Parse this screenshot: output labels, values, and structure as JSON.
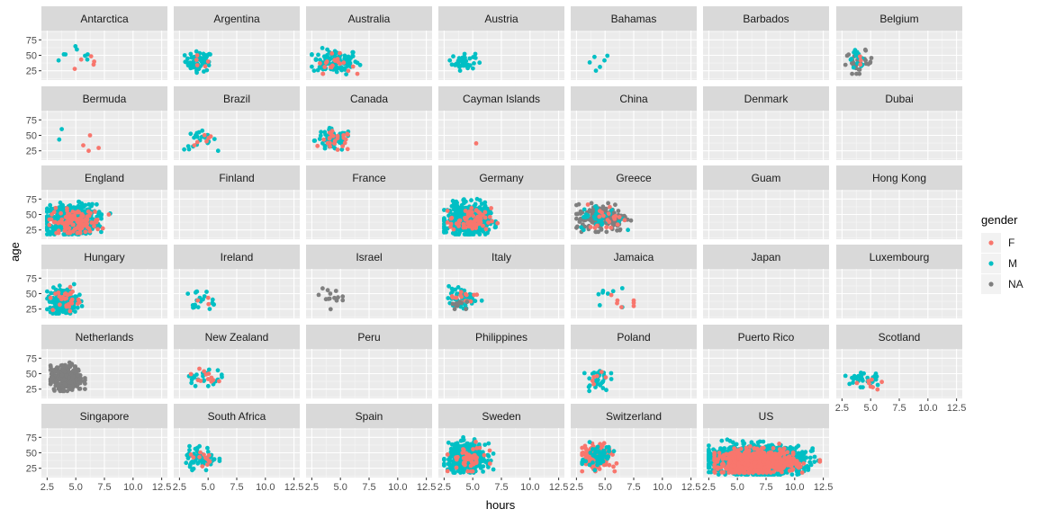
{
  "chart_data": {
    "type": "scatter",
    "title": "",
    "xlabel": "hours",
    "ylabel": "age",
    "xlim": [
      2,
      13
    ],
    "ylim": [
      10,
      90
    ],
    "x_ticks": [
      2.5,
      5.0,
      7.5,
      10.0,
      12.5
    ],
    "x_tick_labels": [
      "2.5",
      "5.0",
      "7.5",
      "10.0",
      "12.5"
    ],
    "y_ticks": [
      25,
      50,
      75
    ],
    "y_tick_labels": [
      "25",
      "50",
      "75"
    ],
    "grid": true,
    "facet_cols": 7,
    "legend": {
      "title": "gender",
      "position": "right",
      "entries": [
        {
          "label": "F",
          "color": "#F8766D"
        },
        {
          "label": "M",
          "color": "#00BFC4"
        },
        {
          "label": "NA",
          "color": "#7F7F7F"
        }
      ]
    },
    "panels": [
      {
        "name": "Antarctica",
        "clusters": [
          {
            "g": "M",
            "n": 8,
            "cx": 5.5,
            "cy": 48,
            "sx": 1.3,
            "sy": 12,
            "xr": [
              3.5,
              7.5
            ],
            "yr": [
              20,
              70
            ]
          },
          {
            "g": "F",
            "n": 5,
            "cx": 5.7,
            "cy": 42,
            "sx": 1.0,
            "sy": 10,
            "xr": [
              4,
              7.5
            ],
            "yr": [
              28,
              65
            ]
          }
        ]
      },
      {
        "name": "Argentina",
        "clusters": [
          {
            "g": "M",
            "n": 55,
            "cx": 4.2,
            "cy": 40,
            "sx": 0.6,
            "sy": 8,
            "xr": [
              2.7,
              5.8
            ],
            "yr": [
              22,
              70
            ]
          },
          {
            "g": "F",
            "n": 5,
            "cx": 4.3,
            "cy": 38,
            "sx": 0.4,
            "sy": 6,
            "xr": [
              3.5,
              5
            ],
            "yr": [
              30,
              50
            ]
          }
        ]
      },
      {
        "name": "Australia",
        "clusters": [
          {
            "g": "M",
            "n": 110,
            "cx": 4.6,
            "cy": 40,
            "sx": 1.0,
            "sy": 10,
            "xr": [
              2.5,
              8
            ],
            "yr": [
              18,
              78
            ]
          },
          {
            "g": "F",
            "n": 20,
            "cx": 4.3,
            "cy": 35,
            "sx": 0.8,
            "sy": 8,
            "xr": [
              2.8,
              6.5
            ],
            "yr": [
              20,
              55
            ]
          }
        ]
      },
      {
        "name": "Austria",
        "clusters": [
          {
            "g": "M",
            "n": 45,
            "cx": 4.2,
            "cy": 40,
            "sx": 0.5,
            "sy": 7,
            "xr": [
              3,
              5.6
            ],
            "yr": [
              25,
              58
            ]
          }
        ]
      },
      {
        "name": "Bahamas",
        "clusters": [
          {
            "g": "M",
            "n": 6,
            "cx": 4.4,
            "cy": 45,
            "sx": 0.5,
            "sy": 14,
            "xr": [
              3.5,
              5.2
            ],
            "yr": [
              22,
              68
            ]
          }
        ]
      },
      {
        "name": "Barbados",
        "clusters": []
      },
      {
        "name": "Belgium",
        "clusters": [
          {
            "g": "NA",
            "n": 35,
            "cx": 4.0,
            "cy": 38,
            "sx": 0.6,
            "sy": 9,
            "xr": [
              2.8,
              6
            ],
            "yr": [
              20,
              68
            ]
          },
          {
            "g": "M",
            "n": 15,
            "cx": 3.9,
            "cy": 45,
            "sx": 0.4,
            "sy": 7,
            "xr": [
              3,
              5
            ],
            "yr": [
              30,
              60
            ]
          },
          {
            "g": "F",
            "n": 3,
            "cx": 4.0,
            "cy": 42,
            "sx": 0.3,
            "sy": 5,
            "xr": [
              3.5,
              4.5
            ],
            "yr": [
              35,
              50
            ]
          }
        ]
      },
      {
        "name": "Bermuda",
        "clusters": [
          {
            "g": "M",
            "n": 2,
            "cx": 3.5,
            "cy": 48,
            "sx": 1.0,
            "sy": 10,
            "xr": [
              2.5,
              4.5
            ],
            "yr": [
              35,
              60
            ]
          },
          {
            "g": "F",
            "n": 4,
            "cx": 5.5,
            "cy": 33,
            "sx": 1.2,
            "sy": 10,
            "xr": [
              4,
              7
            ],
            "yr": [
              25,
              50
            ]
          }
        ]
      },
      {
        "name": "Brazil",
        "clusters": [
          {
            "g": "M",
            "n": 22,
            "cx": 4.3,
            "cy": 42,
            "sx": 0.7,
            "sy": 8,
            "xr": [
              2.8,
              6
            ],
            "yr": [
              25,
              60
            ]
          },
          {
            "g": "F",
            "n": 6,
            "cx": 4.6,
            "cy": 40,
            "sx": 0.6,
            "sy": 10,
            "xr": [
              3.8,
              5.8
            ],
            "yr": [
              28,
              65
            ]
          }
        ]
      },
      {
        "name": "Canada",
        "clusters": [
          {
            "g": "M",
            "n": 70,
            "cx": 4.4,
            "cy": 42,
            "sx": 0.8,
            "sy": 9,
            "xr": [
              2.5,
              7.5
            ],
            "yr": [
              20,
              62
            ]
          },
          {
            "g": "F",
            "n": 25,
            "cx": 4.6,
            "cy": 40,
            "sx": 0.7,
            "sy": 8,
            "xr": [
              3,
              6.5
            ],
            "yr": [
              22,
              58
            ]
          }
        ]
      },
      {
        "name": "Cayman Islands",
        "clusters": [
          {
            "g": "F",
            "n": 1,
            "cx": 5.3,
            "cy": 37,
            "sx": 0.0,
            "sy": 0,
            "xr": [
              5.3,
              5.3
            ],
            "yr": [
              37,
              37
            ]
          }
        ]
      },
      {
        "name": "China",
        "clusters": []
      },
      {
        "name": "Denmark",
        "clusters": []
      },
      {
        "name": "Dubai",
        "clusters": []
      },
      {
        "name": "England",
        "clusters": [
          {
            "g": "M",
            "n": 500,
            "cx": 4.6,
            "cy": 42,
            "sx": 1.1,
            "sy": 12,
            "xr": [
              2.5,
              8
            ],
            "yr": [
              18,
              75
            ]
          },
          {
            "g": "F",
            "n": 120,
            "cx": 5.0,
            "cy": 38,
            "sx": 1.1,
            "sy": 10,
            "xr": [
              2.7,
              8.5
            ],
            "yr": [
              20,
              72
            ]
          }
        ]
      },
      {
        "name": "Finland",
        "clusters": []
      },
      {
        "name": "France",
        "clusters": []
      },
      {
        "name": "Germany",
        "clusters": [
          {
            "g": "M",
            "n": 480,
            "cx": 4.6,
            "cy": 42,
            "sx": 0.9,
            "sy": 12,
            "xr": [
              2.5,
              7
            ],
            "yr": [
              18,
              75
            ]
          },
          {
            "g": "F",
            "n": 70,
            "cx": 4.8,
            "cy": 40,
            "sx": 0.9,
            "sy": 10,
            "xr": [
              2.8,
              7.5
            ],
            "yr": [
              20,
              70
            ]
          }
        ]
      },
      {
        "name": "Greece",
        "clusters": [
          {
            "g": "NA",
            "n": 160,
            "cx": 4.8,
            "cy": 45,
            "sx": 1.1,
            "sy": 11,
            "xr": [
              2.5,
              8
            ],
            "yr": [
              22,
              75
            ]
          },
          {
            "g": "M",
            "n": 35,
            "cx": 4.6,
            "cy": 45,
            "sx": 0.9,
            "sy": 10,
            "xr": [
              2.8,
              7
            ],
            "yr": [
              25,
              75
            ]
          },
          {
            "g": "F",
            "n": 20,
            "cx": 5.3,
            "cy": 45,
            "sx": 0.9,
            "sy": 10,
            "xr": [
              3.5,
              7.5
            ],
            "yr": [
              28,
              70
            ]
          }
        ]
      },
      {
        "name": "Guam",
        "clusters": []
      },
      {
        "name": "Hong Kong",
        "clusters": []
      },
      {
        "name": "Hungary",
        "clusters": [
          {
            "g": "M",
            "n": 220,
            "cx": 3.9,
            "cy": 38,
            "sx": 0.6,
            "sy": 10,
            "xr": [
              2.5,
              5.8
            ],
            "yr": [
              18,
              72
            ]
          },
          {
            "g": "F",
            "n": 30,
            "cx": 4.2,
            "cy": 40,
            "sx": 0.6,
            "sy": 10,
            "xr": [
              2.8,
              5.8
            ],
            "yr": [
              20,
              68
            ]
          }
        ]
      },
      {
        "name": "Ireland",
        "clusters": [
          {
            "g": "M",
            "n": 20,
            "cx": 4.3,
            "cy": 38,
            "sx": 0.6,
            "sy": 9,
            "xr": [
              3,
              5.5
            ],
            "yr": [
              22,
              58
            ]
          },
          {
            "g": "F",
            "n": 3,
            "cx": 4.8,
            "cy": 38,
            "sx": 1.0,
            "sy": 5,
            "xr": [
              3.8,
              6.8
            ],
            "yr": [
              32,
              45
            ]
          }
        ]
      },
      {
        "name": "Israel",
        "clusters": [
          {
            "g": "NA",
            "n": 14,
            "cx": 4.0,
            "cy": 45,
            "sx": 0.6,
            "sy": 9,
            "xr": [
              3,
              5.2
            ],
            "yr": [
              22,
              60
            ]
          }
        ]
      },
      {
        "name": "Italy",
        "clusters": [
          {
            "g": "M",
            "n": 55,
            "cx": 4.1,
            "cy": 42,
            "sx": 0.6,
            "sy": 8,
            "xr": [
              2.8,
              5.8
            ],
            "yr": [
              26,
              62
            ]
          },
          {
            "g": "F",
            "n": 15,
            "cx": 4.3,
            "cy": 45,
            "sx": 0.6,
            "sy": 7,
            "xr": [
              3.2,
              5.8
            ],
            "yr": [
              30,
              60
            ]
          },
          {
            "g": "NA",
            "n": 10,
            "cx": 3.5,
            "cy": 33,
            "sx": 0.4,
            "sy": 5,
            "xr": [
              2.8,
              4.5
            ],
            "yr": [
              25,
              45
            ]
          }
        ]
      },
      {
        "name": "Jamaica",
        "clusters": [
          {
            "g": "M",
            "n": 8,
            "cx": 4.8,
            "cy": 45,
            "sx": 1.0,
            "sy": 12,
            "xr": [
              3.5,
              6.5
            ],
            "yr": [
              28,
              68
            ]
          },
          {
            "g": "F",
            "n": 7,
            "cx": 6.3,
            "cy": 38,
            "sx": 0.8,
            "sy": 8,
            "xr": [
              5,
              7.5
            ],
            "yr": [
              28,
              52
            ]
          }
        ]
      },
      {
        "name": "Japan",
        "clusters": []
      },
      {
        "name": "Luxembourg",
        "clusters": []
      },
      {
        "name": "Netherlands",
        "clusters": [
          {
            "g": "NA",
            "n": 320,
            "cx": 4.2,
            "cy": 42,
            "sx": 0.7,
            "sy": 10,
            "xr": [
              2.8,
              5.8
            ],
            "yr": [
              22,
              68
            ]
          }
        ]
      },
      {
        "name": "New Zealand",
        "clusters": [
          {
            "g": "M",
            "n": 25,
            "cx": 4.5,
            "cy": 45,
            "sx": 0.8,
            "sy": 8,
            "xr": [
              3,
              6.5
            ],
            "yr": [
              30,
              65
            ]
          },
          {
            "g": "F",
            "n": 12,
            "cx": 4.5,
            "cy": 45,
            "sx": 0.6,
            "sy": 6,
            "xr": [
              3.5,
              6
            ],
            "yr": [
              35,
              58
            ]
          }
        ]
      },
      {
        "name": "Peru",
        "clusters": []
      },
      {
        "name": "Philippines",
        "clusters": []
      },
      {
        "name": "Poland",
        "clusters": [
          {
            "g": "M",
            "n": 30,
            "cx": 4.3,
            "cy": 42,
            "sx": 0.5,
            "sy": 10,
            "xr": [
              3.2,
              6
            ],
            "yr": [
              22,
              75
            ]
          },
          {
            "g": "F",
            "n": 6,
            "cx": 4.5,
            "cy": 38,
            "sx": 0.5,
            "sy": 10,
            "xr": [
              3.8,
              5.8
            ],
            "yr": [
              25,
              55
            ]
          }
        ]
      },
      {
        "name": "Puerto Rico",
        "clusters": []
      },
      {
        "name": "Scotland",
        "clusters": [
          {
            "g": "M",
            "n": 28,
            "cx": 4.3,
            "cy": 42,
            "sx": 0.8,
            "sy": 8,
            "xr": [
              2.8,
              6.8
            ],
            "yr": [
              28,
              72
            ]
          },
          {
            "g": "F",
            "n": 8,
            "cx": 4.8,
            "cy": 35,
            "sx": 0.8,
            "sy": 8,
            "xr": [
              3.5,
              6.8
            ],
            "yr": [
              20,
              48
            ]
          }
        ]
      },
      {
        "name": "Singapore",
        "clusters": []
      },
      {
        "name": "South Africa",
        "clusters": [
          {
            "g": "M",
            "n": 55,
            "cx": 4.4,
            "cy": 42,
            "sx": 0.7,
            "sy": 9,
            "xr": [
              2.7,
              6
            ],
            "yr": [
              22,
              75
            ]
          },
          {
            "g": "F",
            "n": 12,
            "cx": 4.6,
            "cy": 42,
            "sx": 0.6,
            "sy": 8,
            "xr": [
              3.5,
              5.8
            ],
            "yr": [
              28,
              58
            ]
          }
        ]
      },
      {
        "name": "Spain",
        "clusters": []
      },
      {
        "name": "Sweden",
        "clusters": [
          {
            "g": "M",
            "n": 420,
            "cx": 4.5,
            "cy": 42,
            "sx": 0.8,
            "sy": 11,
            "xr": [
              2.5,
              6.8
            ],
            "yr": [
              18,
              75
            ]
          },
          {
            "g": "F",
            "n": 45,
            "cx": 4.6,
            "cy": 40,
            "sx": 0.8,
            "sy": 10,
            "xr": [
              2.8,
              6.5
            ],
            "yr": [
              20,
              68
            ]
          }
        ]
      },
      {
        "name": "Switzerland",
        "clusters": [
          {
            "g": "F",
            "n": 170,
            "cx": 4.3,
            "cy": 42,
            "sx": 0.6,
            "sy": 10,
            "xr": [
              3,
              6
            ],
            "yr": [
              20,
              72
            ]
          },
          {
            "g": "M",
            "n": 50,
            "cx": 4.4,
            "cy": 45,
            "sx": 0.7,
            "sy": 11,
            "xr": [
              3,
              6.5
            ],
            "yr": [
              22,
              75
            ]
          }
        ]
      },
      {
        "name": "US",
        "clusters": [
          {
            "g": "M",
            "n": 1300,
            "cx": 6.6,
            "cy": 38,
            "sx": 2.0,
            "sy": 11,
            "xr": [
              2.5,
              12.8
            ],
            "yr": [
              15,
              78
            ]
          },
          {
            "g": "F",
            "n": 650,
            "cx": 6.6,
            "cy": 35,
            "sx": 1.7,
            "sy": 9,
            "xr": [
              3,
              12.2
            ],
            "yr": [
              18,
              68
            ]
          }
        ]
      }
    ]
  }
}
